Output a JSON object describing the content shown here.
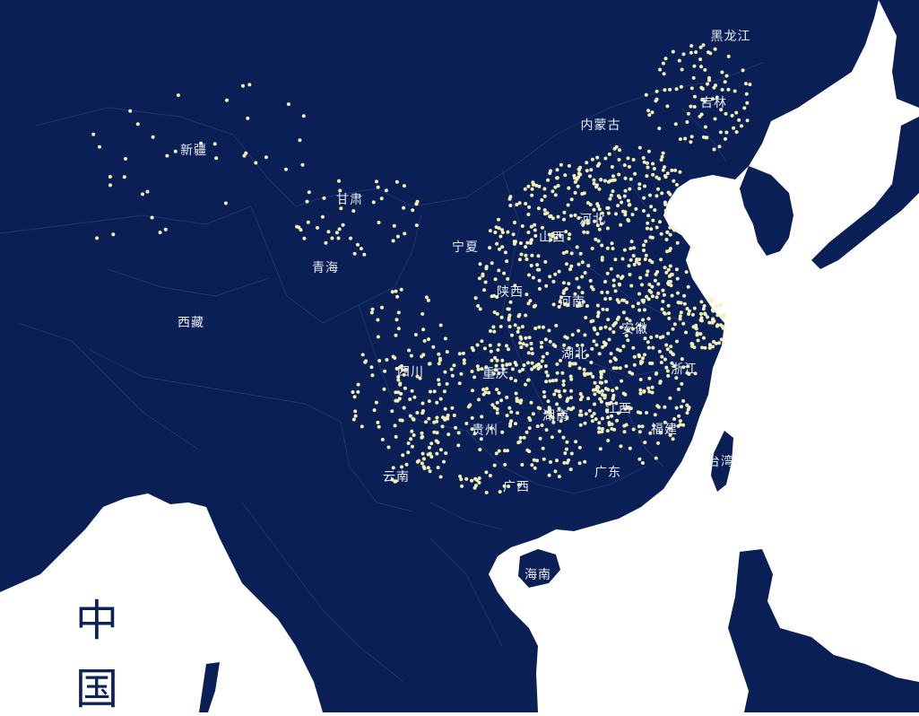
{
  "map": {
    "title_chars": [
      "中",
      "国"
    ],
    "colors": {
      "land": "#0a1f55",
      "sea": "#ffffff",
      "borders": "#23396f",
      "dots": "#f3f1b6",
      "labels": "#e9edf6",
      "title": "#0d2358"
    },
    "province_labels": [
      {
        "name": "黑龙江"
      },
      {
        "name": "吉林"
      },
      {
        "name": "内蒙古"
      },
      {
        "name": "新疆"
      },
      {
        "name": "甘肃"
      },
      {
        "name": "青海"
      },
      {
        "name": "西藏"
      },
      {
        "name": "宁夏"
      },
      {
        "name": "山西"
      },
      {
        "name": "河北"
      },
      {
        "name": "陕西"
      },
      {
        "name": "河南"
      },
      {
        "name": "四川"
      },
      {
        "name": "重庆"
      },
      {
        "name": "湖北"
      },
      {
        "name": "安徽"
      },
      {
        "name": "浙江"
      },
      {
        "name": "江西"
      },
      {
        "name": "湖南"
      },
      {
        "name": "贵州"
      },
      {
        "name": "福建"
      },
      {
        "name": "云南"
      },
      {
        "name": "广西"
      },
      {
        "name": "广东"
      },
      {
        "name": "台湾"
      },
      {
        "name": "海南"
      }
    ]
  }
}
